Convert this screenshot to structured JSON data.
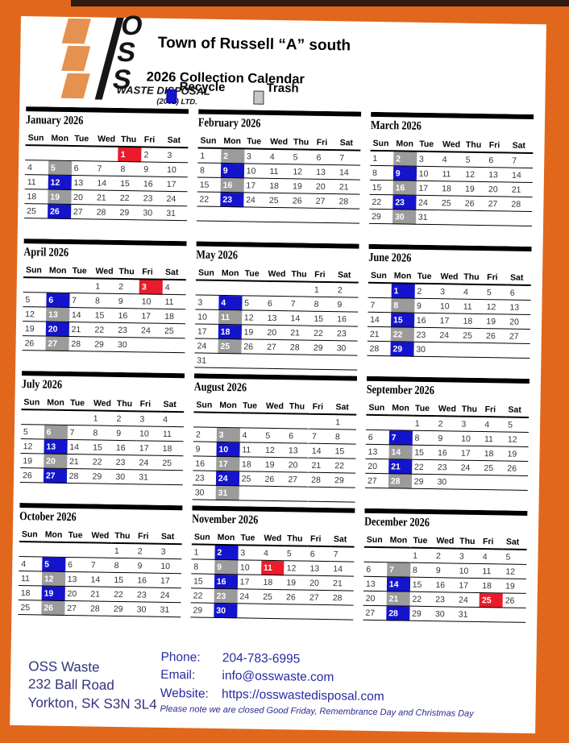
{
  "colors": {
    "orange": "#e1671d",
    "top_strip": "#2f1b10",
    "logo_orange": "#e5914f",
    "recycle": "#1414cc",
    "trash": "#9b9b9b",
    "holiday": "#ea1b2b"
  },
  "header": {
    "logo": {
      "letters": [
        "O",
        "S",
        "S"
      ],
      "line1": "WASTE DISPOSAL",
      "line2": "(2002) LTD."
    },
    "title": "Town of Russell “A” south",
    "subtitle": "2026 Collection Calendar",
    "legend": [
      {
        "label": "Recycle",
        "color": "#1414cc",
        "border": "#00008a"
      },
      {
        "label": "Trash",
        "color": "#c6c6c6",
        "border": "#3a3a3a"
      }
    ]
  },
  "day_headers": [
    "Sun",
    "Mon",
    "Tue",
    "Wed",
    "Thu",
    "Fri",
    "Sat"
  ],
  "months": [
    {
      "name": "January 2026",
      "weeks": [
        [
          "",
          "",
          "",
          "",
          "1R",
          "2",
          "3"
        ],
        [
          "4",
          "5G",
          "6",
          "7",
          "8",
          "9",
          "10"
        ],
        [
          "11",
          "12B",
          "13",
          "14",
          "15",
          "16",
          "17"
        ],
        [
          "18",
          "19G",
          "20",
          "21",
          "22",
          "23",
          "24"
        ],
        [
          "25",
          "26B",
          "27",
          "28",
          "29",
          "30",
          "31"
        ]
      ]
    },
    {
      "name": "February 2026",
      "weeks": [
        [
          "1",
          "2G",
          "3",
          "4",
          "5",
          "6",
          "7"
        ],
        [
          "8",
          "9B",
          "10",
          "11",
          "12",
          "13",
          "14"
        ],
        [
          "15",
          "16G",
          "17",
          "18",
          "19",
          "20",
          "21"
        ],
        [
          "22",
          "23B",
          "24",
          "25",
          "26",
          "27",
          "28"
        ],
        [
          "",
          "",
          "",
          "",
          "",
          "",
          ""
        ]
      ]
    },
    {
      "name": "March 2026",
      "weeks": [
        [
          "1",
          "2G",
          "3",
          "4",
          "5",
          "6",
          "7"
        ],
        [
          "8",
          "9B",
          "10",
          "11",
          "12",
          "13",
          "14"
        ],
        [
          "15",
          "16G",
          "17",
          "18",
          "19",
          "20",
          "21"
        ],
        [
          "22",
          "23B",
          "24",
          "25",
          "26",
          "27",
          "28"
        ],
        [
          "29",
          "30G",
          "31",
          "",
          "",
          "",
          ""
        ]
      ]
    },
    {
      "name": "April 2026",
      "weeks": [
        [
          "",
          "",
          "",
          "1",
          "2",
          "3R",
          "4"
        ],
        [
          "5",
          "6B",
          "7",
          "8",
          "9",
          "10",
          "11"
        ],
        [
          "12",
          "13G",
          "14",
          "15",
          "16",
          "17",
          "18"
        ],
        [
          "19",
          "20B",
          "21",
          "22",
          "23",
          "24",
          "25"
        ],
        [
          "26",
          "27G",
          "28",
          "29",
          "30",
          "",
          ""
        ]
      ]
    },
    {
      "name": "May 2026",
      "weeks": [
        [
          "",
          "",
          "",
          "",
          "",
          "1",
          "2"
        ],
        [
          "3",
          "4B",
          "5",
          "6",
          "7",
          "8",
          "9"
        ],
        [
          "10",
          "11G",
          "12",
          "13",
          "14",
          "15",
          "16"
        ],
        [
          "17",
          "18B",
          "19",
          "20",
          "21",
          "22",
          "23"
        ],
        [
          "24",
          "25G",
          "26",
          "27",
          "28",
          "29",
          "30"
        ],
        [
          "31",
          "",
          "",
          "",
          "",
          "",
          ""
        ]
      ]
    },
    {
      "name": "June 2026",
      "weeks": [
        [
          "",
          "1B",
          "2",
          "3",
          "4",
          "5",
          "6"
        ],
        [
          "7",
          "8G",
          "9",
          "10",
          "11",
          "12",
          "13"
        ],
        [
          "14",
          "15B",
          "16",
          "17",
          "18",
          "19",
          "20"
        ],
        [
          "21",
          "22G",
          "23",
          "24",
          "25",
          "26",
          "27"
        ],
        [
          "28",
          "29B",
          "30",
          "",
          "",
          "",
          ""
        ]
      ]
    },
    {
      "name": "July 2026",
      "weeks": [
        [
          "",
          "",
          "",
          "1",
          "2",
          "3",
          "4"
        ],
        [
          "5",
          "6G",
          "7",
          "8",
          "9",
          "10",
          "11"
        ],
        [
          "12",
          "13B",
          "14",
          "15",
          "16",
          "17",
          "18"
        ],
        [
          "19",
          "20G",
          "21",
          "22",
          "23",
          "24",
          "25"
        ],
        [
          "26",
          "27B",
          "28",
          "29",
          "30",
          "31",
          ""
        ]
      ]
    },
    {
      "name": "August 2026",
      "weeks": [
        [
          "",
          "",
          "",
          "",
          "",
          "",
          "1"
        ],
        [
          "2",
          "3G",
          "4",
          "5",
          "6",
          "7",
          "8"
        ],
        [
          "9",
          "10B",
          "11",
          "12",
          "13",
          "14",
          "15"
        ],
        [
          "16",
          "17G",
          "18",
          "19",
          "20",
          "21",
          "22"
        ],
        [
          "23",
          "24B",
          "25",
          "26",
          "27",
          "28",
          "29"
        ],
        [
          "30",
          "31G",
          "",
          "",
          "",
          "",
          ""
        ]
      ]
    },
    {
      "name": "September 2026",
      "weeks": [
        [
          "",
          "",
          "1",
          "2",
          "3",
          "4",
          "5"
        ],
        [
          "6",
          "7B",
          "8",
          "9",
          "10",
          "11",
          "12"
        ],
        [
          "13",
          "14G",
          "15",
          "16",
          "17",
          "18",
          "19"
        ],
        [
          "20",
          "21B",
          "22",
          "23",
          "24",
          "25",
          "26"
        ],
        [
          "27",
          "28G",
          "29",
          "30",
          "",
          "",
          ""
        ]
      ]
    },
    {
      "name": "October 2026",
      "weeks": [
        [
          "",
          "",
          "",
          "",
          "1",
          "2",
          "3"
        ],
        [
          "4",
          "5B",
          "6",
          "7",
          "8",
          "9",
          "10"
        ],
        [
          "11",
          "12G",
          "13",
          "14",
          "15",
          "16",
          "17"
        ],
        [
          "18",
          "19B",
          "20",
          "21",
          "22",
          "23",
          "24"
        ],
        [
          "25",
          "26G",
          "27",
          "28",
          "29",
          "30",
          "31"
        ]
      ]
    },
    {
      "name": "November 2026",
      "weeks": [
        [
          "1",
          "2B",
          "3",
          "4",
          "5",
          "6",
          "7"
        ],
        [
          "8",
          "9G",
          "10",
          "11R",
          "12",
          "13",
          "14"
        ],
        [
          "15",
          "16B",
          "17",
          "18",
          "19",
          "20",
          "21"
        ],
        [
          "22",
          "23G",
          "24",
          "25",
          "26",
          "27",
          "28"
        ],
        [
          "29",
          "30B",
          "",
          "",
          "",
          "",
          ""
        ]
      ]
    },
    {
      "name": "December 2026",
      "weeks": [
        [
          "",
          "",
          "1",
          "2",
          "3",
          "4",
          "5"
        ],
        [
          "6",
          "7G",
          "8",
          "9",
          "10",
          "11",
          "12"
        ],
        [
          "13",
          "14B",
          "15",
          "16",
          "17",
          "18",
          "19"
        ],
        [
          "20",
          "21G",
          "22",
          "23",
          "24",
          "25R",
          "26"
        ],
        [
          "27",
          "28B",
          "29",
          "30",
          "31",
          "",
          ""
        ]
      ]
    }
  ],
  "footer": {
    "company": "OSS Waste",
    "address1": "232 Ball Road",
    "address2": "Yorkton, SK  S3N 3L4",
    "contacts": [
      {
        "label": "Phone:",
        "value": "204-783-6995"
      },
      {
        "label": "Email:",
        "value": "info@osswaste.com"
      },
      {
        "label": "Website:",
        "value": "https://osswastedisposal.com"
      }
    ],
    "note": "Please note we are closed Good Friday, Remembrance Day and Christmas Day"
  }
}
